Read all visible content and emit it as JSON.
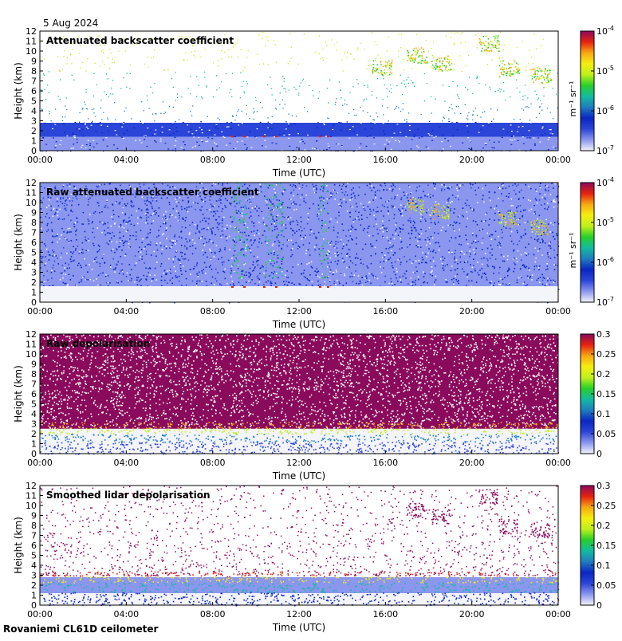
{
  "date": "5 Aug 2024",
  "footer": "Rovaniemi CL61D ceilometer",
  "colors": {
    "cmap": [
      "#f4f4fb",
      "#8b96ee",
      "#2b45d8",
      "#0a27c2",
      "#1f7ec0",
      "#14bba0",
      "#27cf2a",
      "#bff01a",
      "#f5ee10",
      "#f7a812",
      "#e8210f",
      "#8a0a5c"
    ],
    "white": "#ffffff"
  },
  "chart_data": [
    {
      "type": "heatmap",
      "title": "Attenuated backscatter coefficient",
      "xlabel": "Time (UTC)",
      "ylabel": "Height (km)",
      "xticks": [
        "00:00",
        "04:00",
        "08:00",
        "12:00",
        "16:00",
        "20:00",
        "00:00"
      ],
      "yticks": [
        "0",
        "1",
        "2",
        "3",
        "4",
        "5",
        "6",
        "7",
        "8",
        "9",
        "10",
        "11",
        "12"
      ],
      "ylim": [
        0,
        12
      ],
      "colorbar": {
        "scale": "log",
        "unit_label": "m⁻¹ sr⁻¹",
        "ticks": [
          {
            "base": "10",
            "exp": "-4"
          },
          {
            "base": "10",
            "exp": "-5"
          },
          {
            "base": "10",
            "exp": "-6"
          },
          {
            "base": "10",
            "exp": "-7"
          }
        ]
      }
    },
    {
      "type": "heatmap",
      "title": "Raw attenuated backscatter coefficient",
      "xlabel": "Time (UTC)",
      "ylabel": "Height (km)",
      "xticks": [
        "00:00",
        "04:00",
        "08:00",
        "12:00",
        "16:00",
        "20:00",
        "00:00"
      ],
      "yticks": [
        "0",
        "1",
        "2",
        "3",
        "4",
        "5",
        "6",
        "7",
        "8",
        "9",
        "10",
        "11",
        "12"
      ],
      "ylim": [
        0,
        12
      ],
      "colorbar": {
        "scale": "log",
        "unit_label": "m⁻¹ sr⁻¹",
        "ticks": [
          {
            "base": "10",
            "exp": "-4"
          },
          {
            "base": "10",
            "exp": "-5"
          },
          {
            "base": "10",
            "exp": "-6"
          },
          {
            "base": "10",
            "exp": "-7"
          }
        ]
      }
    },
    {
      "type": "heatmap",
      "title": "Raw depolarisation",
      "xlabel": "Time (UTC)",
      "ylabel": "Height (km)",
      "xticks": [
        "00:00",
        "04:00",
        "08:00",
        "12:00",
        "16:00",
        "20:00",
        "00:00"
      ],
      "yticks": [
        "0",
        "1",
        "2",
        "3",
        "4",
        "5",
        "6",
        "7",
        "8",
        "9",
        "10",
        "11",
        "12"
      ],
      "ylim": [
        0,
        12
      ],
      "colorbar": {
        "scale": "linear",
        "unit_label": "",
        "ticks": [
          "0.3",
          "0.25",
          "0.2",
          "0.15",
          "0.1",
          "0.05",
          "0"
        ]
      }
    },
    {
      "type": "heatmap",
      "title": "Smoothed lidar depolarisation",
      "xlabel": "Time (UTC)",
      "ylabel": "Height (km)",
      "xticks": [
        "00:00",
        "04:00",
        "08:00",
        "12:00",
        "16:00",
        "20:00",
        "00:00"
      ],
      "yticks": [
        "0",
        "1",
        "2",
        "3",
        "4",
        "5",
        "6",
        "7",
        "8",
        "9",
        "10",
        "11",
        "12"
      ],
      "ylim": [
        0,
        12
      ],
      "colorbar": {
        "scale": "linear",
        "unit_label": "",
        "ticks": [
          "0.3",
          "0.25",
          "0.2",
          "0.15",
          "0.1",
          "0.05",
          "0"
        ]
      }
    }
  ]
}
